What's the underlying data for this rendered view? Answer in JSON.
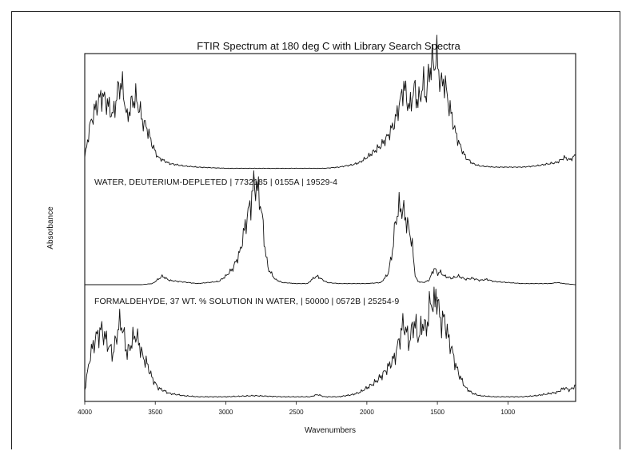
{
  "chart_data": {
    "type": "line",
    "title": "FTIR Spectrum at 180 deg C with Library Search Spectra",
    "xlabel": "Wavenumbers",
    "ylabel": "Absorbance",
    "x_ticks": [
      "4000",
      "3500",
      "3000",
      "2500",
      "2000",
      "1500",
      "1000"
    ],
    "x_tick_values": [
      4000,
      3500,
      3000,
      2500,
      2000,
      1500,
      1000
    ],
    "xlim": [
      4000,
      520
    ],
    "x_reversed": true,
    "grid": false,
    "legend": "none",
    "annotations": [
      "WATER, DEUTERIUM-DEPLETED | 7732185 | 0155A | 19529-4",
      "FORMALDEHYDE, 37 WT. % SOLUTION IN WATER, | 50000 | 0572B | 25254-9"
    ],
    "series": [
      {
        "x": [
          4000,
          3960,
          3920,
          3880,
          3840,
          3800,
          3760,
          3740,
          3720,
          3700,
          3670,
          3640,
          3610,
          3590,
          3560,
          3520,
          3480,
          3400,
          3300,
          3200,
          3000,
          2800,
          2600,
          2400,
          2300,
          2200,
          2100,
          2050,
          2000,
          1950,
          1900,
          1850,
          1800,
          1780,
          1760,
          1740,
          1720,
          1700,
          1680,
          1660,
          1640,
          1620,
          1600,
          1580,
          1560,
          1540,
          1520,
          1510,
          1500,
          1490,
          1470,
          1450,
          1430,
          1400,
          1370,
          1340,
          1300,
          1250,
          1200,
          1100,
          1000,
          900,
          800,
          700,
          650,
          600,
          560,
          520
        ],
        "values": [
          0.1,
          0.38,
          0.52,
          0.62,
          0.55,
          0.45,
          0.68,
          0.72,
          0.6,
          0.42,
          0.55,
          0.6,
          0.5,
          0.4,
          0.35,
          0.2,
          0.1,
          0.05,
          0.03,
          0.02,
          0.01,
          0.01,
          0.01,
          0.01,
          0.01,
          0.02,
          0.04,
          0.06,
          0.1,
          0.15,
          0.2,
          0.28,
          0.4,
          0.5,
          0.58,
          0.7,
          0.62,
          0.5,
          0.6,
          0.68,
          0.55,
          0.62,
          0.72,
          0.6,
          0.8,
          0.9,
          0.85,
          0.98,
          0.9,
          0.8,
          0.7,
          0.75,
          0.6,
          0.45,
          0.3,
          0.2,
          0.1,
          0.05,
          0.03,
          0.02,
          0.02,
          0.02,
          0.03,
          0.05,
          0.06,
          0.1,
          0.08,
          0.12
        ]
      },
      {
        "x": [
          4000,
          3600,
          3520,
          3480,
          3450,
          3400,
          3200,
          3050,
          3000,
          2950,
          2900,
          2870,
          2840,
          2820,
          2800,
          2780,
          2760,
          2740,
          2720,
          2700,
          2650,
          2600,
          2500,
          2420,
          2380,
          2350,
          2320,
          2280,
          2200,
          2000,
          1900,
          1850,
          1820,
          1800,
          1780,
          1760,
          1740,
          1720,
          1700,
          1680,
          1660,
          1640,
          1600,
          1560,
          1540,
          1520,
          1500,
          1480,
          1450,
          1400,
          1350,
          1300,
          1250,
          1200,
          1150,
          1100,
          1000,
          900,
          800,
          700,
          650,
          600,
          520
        ],
        "values": [
          0.0,
          0.0,
          0.01,
          0.05,
          0.08,
          0.04,
          0.01,
          0.03,
          0.08,
          0.15,
          0.3,
          0.5,
          0.68,
          0.78,
          0.95,
          0.9,
          0.82,
          0.6,
          0.32,
          0.15,
          0.05,
          0.02,
          0.01,
          0.01,
          0.06,
          0.08,
          0.05,
          0.02,
          0.01,
          0.01,
          0.02,
          0.1,
          0.3,
          0.55,
          0.7,
          0.72,
          0.68,
          0.6,
          0.5,
          0.4,
          0.1,
          0.03,
          0.02,
          0.04,
          0.1,
          0.16,
          0.1,
          0.12,
          0.08,
          0.06,
          0.08,
          0.05,
          0.06,
          0.04,
          0.05,
          0.03,
          0.02,
          0.01,
          0.01,
          0.01,
          0.02,
          0.01,
          0.0
        ]
      },
      {
        "x": [
          4000,
          3960,
          3920,
          3880,
          3840,
          3800,
          3760,
          3740,
          3720,
          3700,
          3670,
          3640,
          3610,
          3590,
          3560,
          3520,
          3480,
          3400,
          3300,
          3200,
          3000,
          2800,
          2600,
          2400,
          2350,
          2300,
          2200,
          2100,
          2050,
          2000,
          1950,
          1900,
          1850,
          1800,
          1780,
          1760,
          1740,
          1720,
          1700,
          1680,
          1660,
          1640,
          1620,
          1600,
          1580,
          1560,
          1540,
          1520,
          1510,
          1500,
          1490,
          1470,
          1450,
          1430,
          1400,
          1370,
          1340,
          1300,
          1250,
          1200,
          1100,
          1000,
          900,
          800,
          700,
          650,
          600,
          560,
          520
        ],
        "values": [
          0.08,
          0.4,
          0.55,
          0.62,
          0.5,
          0.4,
          0.65,
          0.68,
          0.55,
          0.4,
          0.5,
          0.58,
          0.48,
          0.38,
          0.32,
          0.18,
          0.1,
          0.05,
          0.03,
          0.02,
          0.02,
          0.03,
          0.02,
          0.02,
          0.04,
          0.02,
          0.02,
          0.04,
          0.06,
          0.1,
          0.14,
          0.2,
          0.28,
          0.38,
          0.48,
          0.58,
          0.68,
          0.6,
          0.5,
          0.62,
          0.7,
          0.55,
          0.6,
          0.7,
          0.6,
          0.8,
          0.88,
          0.82,
          0.96,
          0.88,
          0.78,
          0.68,
          0.72,
          0.58,
          0.45,
          0.3,
          0.2,
          0.1,
          0.05,
          0.03,
          0.02,
          0.02,
          0.02,
          0.03,
          0.05,
          0.06,
          0.1,
          0.08,
          0.12
        ]
      }
    ]
  }
}
